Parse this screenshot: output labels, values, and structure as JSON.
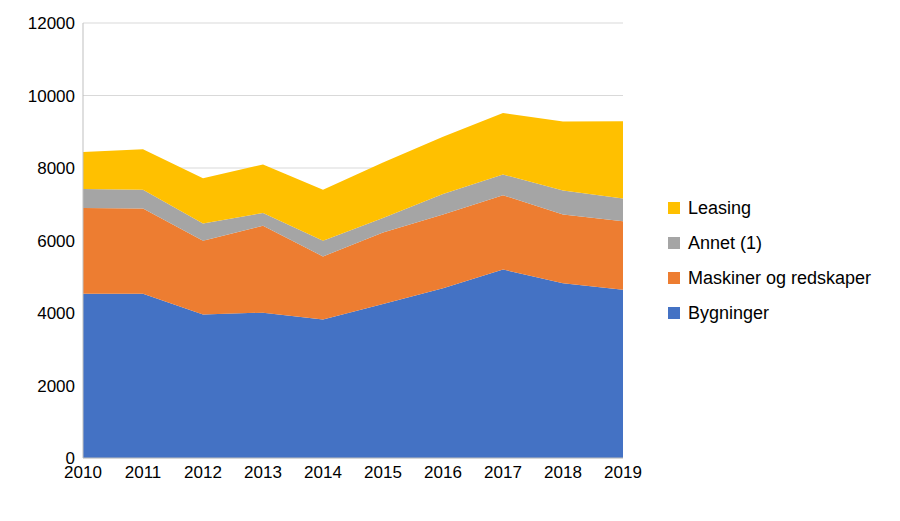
{
  "chart_data": {
    "type": "area",
    "stacked": true,
    "grid": true,
    "legend": "right",
    "categories": [
      "2010",
      "2011",
      "2012",
      "2013",
      "2014",
      "2015",
      "2016",
      "2017",
      "2018",
      "2019"
    ],
    "ylim": [
      0,
      12000
    ],
    "yticks": [
      0,
      2000,
      4000,
      6000,
      8000,
      10000,
      12000
    ],
    "series": [
      {
        "name": "Bygninger",
        "color": "#4472C4",
        "values": [
          4530,
          4530,
          3960,
          4010,
          3820,
          4250,
          4680,
          5200,
          4820,
          4640
        ]
      },
      {
        "name": "Maskiner og redskaper",
        "color": "#ED7D31",
        "values": [
          2370,
          2350,
          2030,
          2400,
          1740,
          1970,
          2040,
          2050,
          1900,
          1890
        ]
      },
      {
        "name": "Annet (1)",
        "color": "#A5A5A5",
        "values": [
          520,
          520,
          480,
          350,
          430,
          400,
          560,
          570,
          660,
          630
        ]
      },
      {
        "name": "Leasing",
        "color": "#FFC000",
        "values": [
          1020,
          1120,
          1250,
          1340,
          1410,
          1530,
          1580,
          1700,
          1900,
          2130
        ]
      }
    ]
  }
}
